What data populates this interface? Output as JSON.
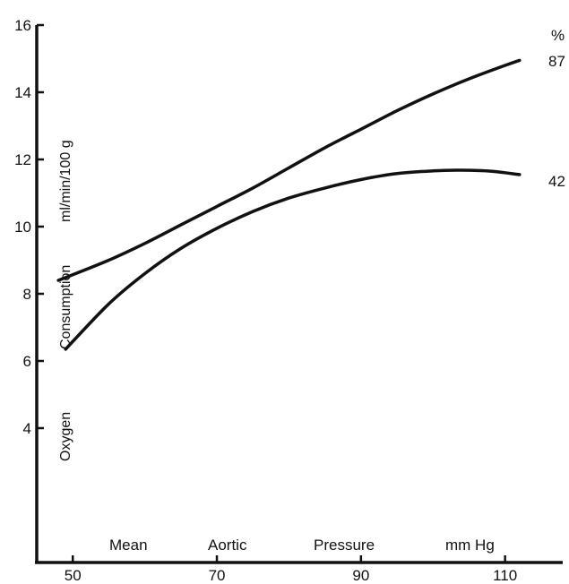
{
  "chart_data": {
    "type": "line",
    "title": "",
    "xlabel_parts": [
      "Mean",
      "Aortic",
      "Pressure",
      "mm Hg"
    ],
    "ylabel_parts": [
      "Oxygen",
      "Consumption",
      "ml/min/100 g"
    ],
    "xlim": [
      45,
      118
    ],
    "ylim": [
      0,
      16
    ],
    "x_ticks": [
      50,
      70,
      90,
      110
    ],
    "x_tick_labels": [
      "50",
      "70",
      "90",
      "110"
    ],
    "y_ticks": [
      4,
      6,
      8,
      10,
      12,
      14,
      16
    ],
    "y_tick_labels": [
      "4",
      "6",
      "8",
      "10",
      "12",
      "14",
      "16"
    ],
    "series_unit": "%",
    "series": [
      {
        "name": "87",
        "x": [
          48,
          55,
          60,
          65,
          70,
          75,
          80,
          85,
          90,
          95,
          100,
          105,
          110,
          112
        ],
        "y": [
          8.4,
          9.0,
          9.5,
          10.05,
          10.6,
          11.15,
          11.75,
          12.35,
          12.9,
          13.45,
          13.95,
          14.4,
          14.8,
          14.95
        ]
      },
      {
        "name": "42",
        "x": [
          49,
          55,
          60,
          65,
          70,
          75,
          80,
          85,
          90,
          95,
          100,
          104,
          108,
          112
        ],
        "y": [
          6.35,
          7.7,
          8.6,
          9.35,
          9.95,
          10.45,
          10.85,
          11.15,
          11.4,
          11.58,
          11.66,
          11.68,
          11.65,
          11.55
        ]
      }
    ],
    "grid": false,
    "legend": "none",
    "line_color": "#111111"
  }
}
